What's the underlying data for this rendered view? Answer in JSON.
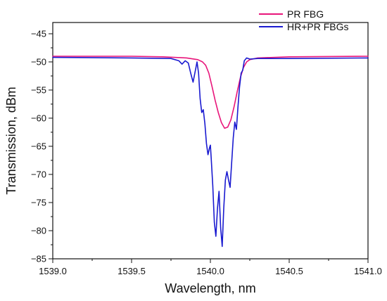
{
  "chart_data": {
    "type": "line",
    "xlabel": "Wavelength, nm",
    "ylabel": "Transmission, dBm",
    "xlim": [
      1539.0,
      1541.0
    ],
    "ylim": [
      -85,
      -43
    ],
    "xticks": [
      {
        "value": 1539.0,
        "label": "1539.0"
      },
      {
        "value": 1539.5,
        "label": "1539.5"
      },
      {
        "value": 1540.0,
        "label": "1540.0"
      },
      {
        "value": 1540.5,
        "label": "1540.5"
      },
      {
        "value": 1541.0,
        "label": "1541.0"
      }
    ],
    "yticks": [
      {
        "value": -45,
        "label": "−45"
      },
      {
        "value": -50,
        "label": "−50"
      },
      {
        "value": -55,
        "label": "−55"
      },
      {
        "value": -60,
        "label": "−60"
      },
      {
        "value": -65,
        "label": "−65"
      },
      {
        "value": -70,
        "label": "−70"
      },
      {
        "value": -75,
        "label": "−75"
      },
      {
        "value": -80,
        "label": "−80"
      },
      {
        "value": -85,
        "label": "−85"
      }
    ],
    "grid": false,
    "legend_position": "top-right",
    "series": [
      {
        "name": "PR FBG",
        "color": "#e8157a",
        "x": [
          1539.0,
          1539.5,
          1539.7,
          1539.85,
          1539.92,
          1539.95,
          1539.97,
          1539.99,
          1540.01,
          1540.03,
          1540.05,
          1540.07,
          1540.09,
          1540.11,
          1540.13,
          1540.15,
          1540.17,
          1540.19,
          1540.21,
          1540.23,
          1540.25,
          1540.3,
          1540.5,
          1541.0
        ],
        "y": [
          -49.0,
          -49.0,
          -49.1,
          -49.3,
          -49.6,
          -50.0,
          -50.6,
          -52.0,
          -54.3,
          -56.8,
          -59.0,
          -60.8,
          -61.8,
          -61.6,
          -60.3,
          -58.0,
          -55.3,
          -52.8,
          -51.0,
          -50.0,
          -49.6,
          -49.3,
          -49.1,
          -49.0
        ]
      },
      {
        "name": "HR+PR FBGs",
        "color": "#1a1ad0",
        "x": [
          1539.0,
          1539.5,
          1539.75,
          1539.8,
          1539.82,
          1539.84,
          1539.86,
          1539.875,
          1539.89,
          1539.905,
          1539.915,
          1539.925,
          1539.935,
          1539.945,
          1539.955,
          1539.965,
          1539.975,
          1539.985,
          1539.995,
          1540.0,
          1540.005,
          1540.015,
          1540.025,
          1540.035,
          1540.045,
          1540.055,
          1540.065,
          1540.075,
          1540.085,
          1540.095,
          1540.105,
          1540.115,
          1540.125,
          1540.135,
          1540.145,
          1540.155,
          1540.165,
          1540.175,
          1540.185,
          1540.195,
          1540.205,
          1540.215,
          1540.23,
          1540.25,
          1540.3,
          1540.5,
          1541.0
        ],
        "y": [
          -49.2,
          -49.3,
          -49.4,
          -49.8,
          -50.4,
          -49.8,
          -50.2,
          -52.0,
          -53.6,
          -51.5,
          -50.0,
          -52.0,
          -56.5,
          -59.0,
          -58.5,
          -61.0,
          -64.5,
          -66.5,
          -65.2,
          -64.8,
          -67.0,
          -72.0,
          -78.5,
          -81.0,
          -76.0,
          -73.0,
          -79.5,
          -82.8,
          -76.0,
          -71.0,
          -69.5,
          -71.0,
          -72.3,
          -68.0,
          -63.5,
          -60.7,
          -62.0,
          -58.0,
          -54.5,
          -52.0,
          -51.5,
          -49.8,
          -49.3,
          -49.5,
          -49.4,
          -49.4,
          -49.3
        ]
      }
    ]
  }
}
